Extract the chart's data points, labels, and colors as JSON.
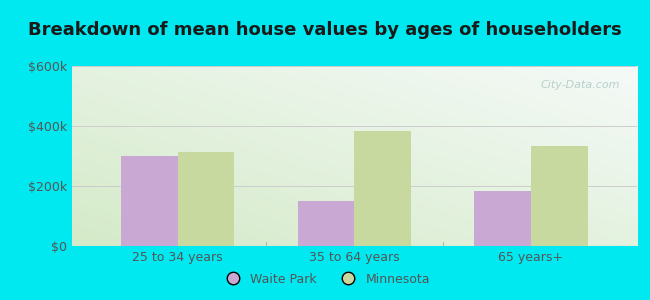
{
  "title": "Breakdown of mean house values by ages of householders",
  "categories": [
    "25 to 34 years",
    "35 to 64 years",
    "65 years+"
  ],
  "waite_park": [
    300000,
    150000,
    185000
  ],
  "minnesota": [
    315000,
    385000,
    335000
  ],
  "waite_park_color": "#c9a8d4",
  "minnesota_color": "#c8d9a0",
  "ylim": [
    0,
    600000
  ],
  "yticks": [
    0,
    200000,
    400000,
    600000
  ],
  "ytick_labels": [
    "$0",
    "$200k",
    "$400k",
    "$600k"
  ],
  "background_outer": "#00e8f0",
  "legend_labels": [
    "Waite Park",
    "Minnesota"
  ],
  "bar_width": 0.32,
  "title_fontsize": 13,
  "tick_fontsize": 9,
  "legend_fontsize": 9,
  "tick_color": "#555555",
  "title_color": "#1a1a1a",
  "watermark": "City-Data.com"
}
